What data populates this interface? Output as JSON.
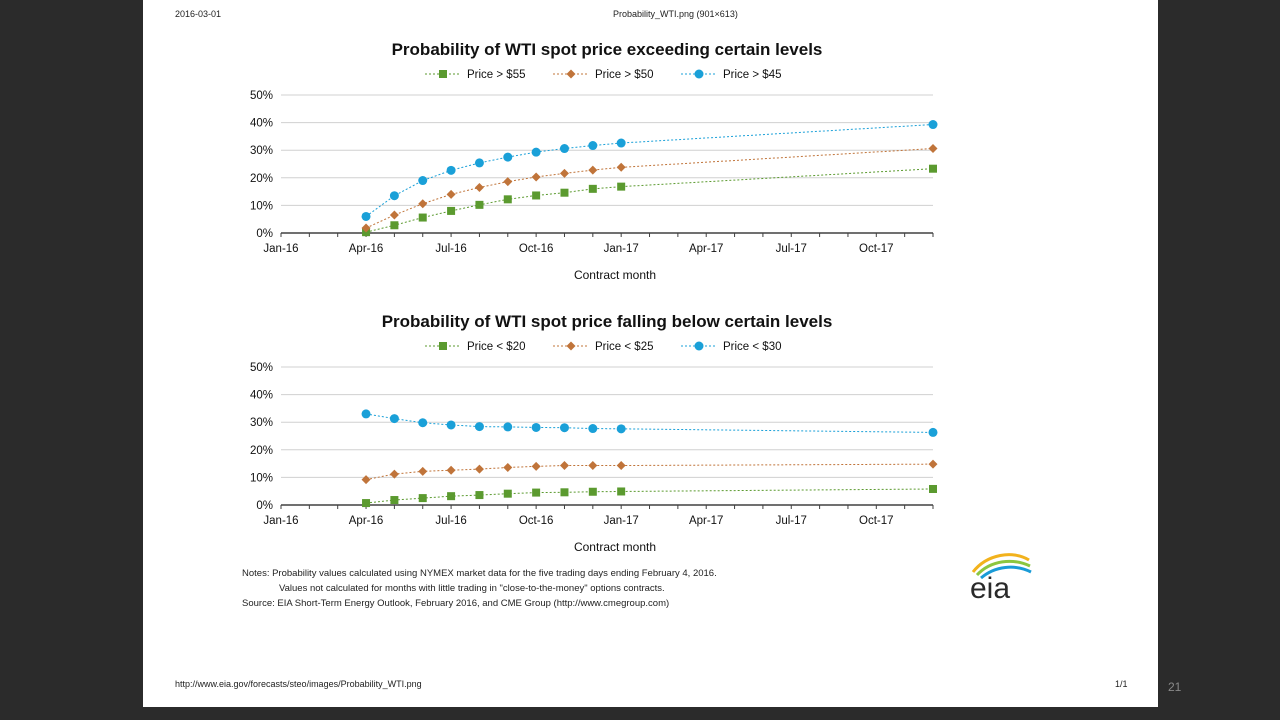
{
  "header": {
    "date": "2016-03-01",
    "filename": "Probability_WTI.png (901×613)",
    "url": "http://www.eia.gov/forecasts/steo/images/Probability_WTI.png",
    "page_count": "1/1"
  },
  "slide_number": "21",
  "colors": {
    "green": "#5b9a2f",
    "orange": "#c0743a",
    "blue": "#1aa0d8",
    "grid": "#d0d0d0",
    "axis": "#404040"
  },
  "logo_text": "eia",
  "notes": {
    "line1": "Notes: Probability values calculated using NYMEX market data for the five trading days ending February 4, 2016.",
    "line2": "Values not calculated for months with little trading in \"close-to-the-money\" options contracts.",
    "line3": "Source:  EIA Short-Term Energy Outlook, February 2016, and CME Group (http://www.cmegroup.com)"
  },
  "chart_data": [
    {
      "type": "line",
      "title": "Probability of WTI spot price exceeding certain levels",
      "xlabel": "Contract month",
      "ylabel": "",
      "x_ticks": [
        "Jan-16",
        "Apr-16",
        "Jul-16",
        "Oct-16",
        "Jan-17",
        "Apr-17",
        "Jul-17",
        "Oct-17"
      ],
      "x_range": [
        "2016-01",
        "2017-12"
      ],
      "y_ticks": [
        "0%",
        "10%",
        "20%",
        "30%",
        "40%",
        "50%"
      ],
      "ylim": [
        0,
        50
      ],
      "grid": true,
      "legend_position": "top",
      "x": [
        "2016-04",
        "2016-05",
        "2016-06",
        "2016-07",
        "2016-08",
        "2016-09",
        "2016-10",
        "2016-11",
        "2016-12",
        "2017-01",
        "2017-12"
      ],
      "series": [
        {
          "name": "Price > $55",
          "color": "#5b9a2f",
          "marker": "square",
          "values": [
            0.3,
            2.8,
            5.6,
            8.0,
            10.2,
            12.2,
            13.6,
            14.6,
            16.0,
            16.8,
            23.3
          ]
        },
        {
          "name": "Price > $50",
          "color": "#c0743a",
          "marker": "diamond",
          "values": [
            1.8,
            6.5,
            10.6,
            14.0,
            16.5,
            18.6,
            20.3,
            21.6,
            22.8,
            23.8,
            30.6
          ]
        },
        {
          "name": "Price > $45",
          "color": "#1aa0d8",
          "marker": "circle",
          "values": [
            6.0,
            13.5,
            19.0,
            22.7,
            25.4,
            27.5,
            29.3,
            30.6,
            31.7,
            32.6,
            39.3
          ]
        }
      ]
    },
    {
      "type": "line",
      "title": "Probability of WTI spot price falling below certain levels",
      "xlabel": "Contract month",
      "ylabel": "",
      "x_ticks": [
        "Jan-16",
        "Apr-16",
        "Jul-16",
        "Oct-16",
        "Jan-17",
        "Apr-17",
        "Jul-17",
        "Oct-17"
      ],
      "x_range": [
        "2016-01",
        "2017-12"
      ],
      "y_ticks": [
        "0%",
        "10%",
        "20%",
        "30%",
        "40%",
        "50%"
      ],
      "ylim": [
        0,
        50
      ],
      "grid": true,
      "legend_position": "top",
      "x": [
        "2016-04",
        "2016-05",
        "2016-06",
        "2016-07",
        "2016-08",
        "2016-09",
        "2016-10",
        "2016-11",
        "2016-12",
        "2017-01",
        "2017-12"
      ],
      "series": [
        {
          "name": "Price < $20",
          "color": "#5b9a2f",
          "marker": "square",
          "values": [
            0.7,
            1.8,
            2.5,
            3.2,
            3.6,
            4.1,
            4.5,
            4.6,
            4.8,
            4.9,
            5.8
          ]
        },
        {
          "name": "Price < $25",
          "color": "#c0743a",
          "marker": "diamond",
          "values": [
            9.2,
            11.2,
            12.2,
            12.6,
            13.0,
            13.6,
            14.0,
            14.3,
            14.3,
            14.3,
            14.8
          ]
        },
        {
          "name": "Price < $30",
          "color": "#1aa0d8",
          "marker": "circle",
          "values": [
            33.0,
            31.3,
            29.8,
            29.0,
            28.4,
            28.3,
            28.1,
            28.0,
            27.7,
            27.6,
            26.3
          ]
        }
      ]
    }
  ]
}
